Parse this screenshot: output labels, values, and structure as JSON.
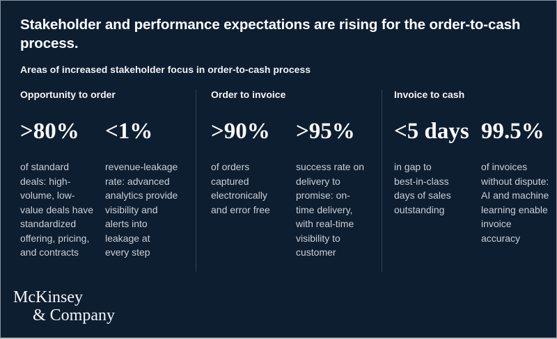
{
  "page": {
    "title": "Stakeholder and performance expectations are rising for the order-to-cash\nprocess.",
    "subtitle": "Areas of increased stakeholder focus in order-to-cash process"
  },
  "columns": [
    {
      "header": "Opportunity to order",
      "stats": [
        {
          "value": ">80%",
          "description": "of standard\ndeals: high-\nvolume, low-\nvalue deals have\nstandardized\noffering, pricing,\nand contracts"
        },
        {
          "value": "<1%",
          "description": "revenue-leakage\nrate: advanced\nanalytics provide\nvisibility and\nalerts into\nleakage at\nevery step"
        }
      ]
    },
    {
      "header": "Order to invoice",
      "stats": [
        {
          "value": ">90%",
          "description": "of orders\ncaptured\nelectronically\nand error free"
        },
        {
          "value": ">95%",
          "description": "success rate on\ndelivery to\npromise: on-\ntime delivery,\nwith real-time\nvisibility to\ncustomer"
        }
      ]
    },
    {
      "header": "Invoice to cash",
      "stats": [
        {
          "value": "<5 days",
          "description": "in gap to\nbest-in-class\ndays of sales\noutstanding"
        },
        {
          "value": "99.5%",
          "description": "of invoices\nwithout dispute:\nAI and machine\nlearning enable\ninvoice\naccuracy"
        }
      ]
    }
  ],
  "logo": {
    "line1": "McKinsey",
    "line2": "& Company"
  },
  "colors": {
    "background": "#0d1e31",
    "divider": "#2e4054",
    "title_text": "#fcfdfe",
    "body_text": "#c9cfd6",
    "border": "#8f959d"
  }
}
